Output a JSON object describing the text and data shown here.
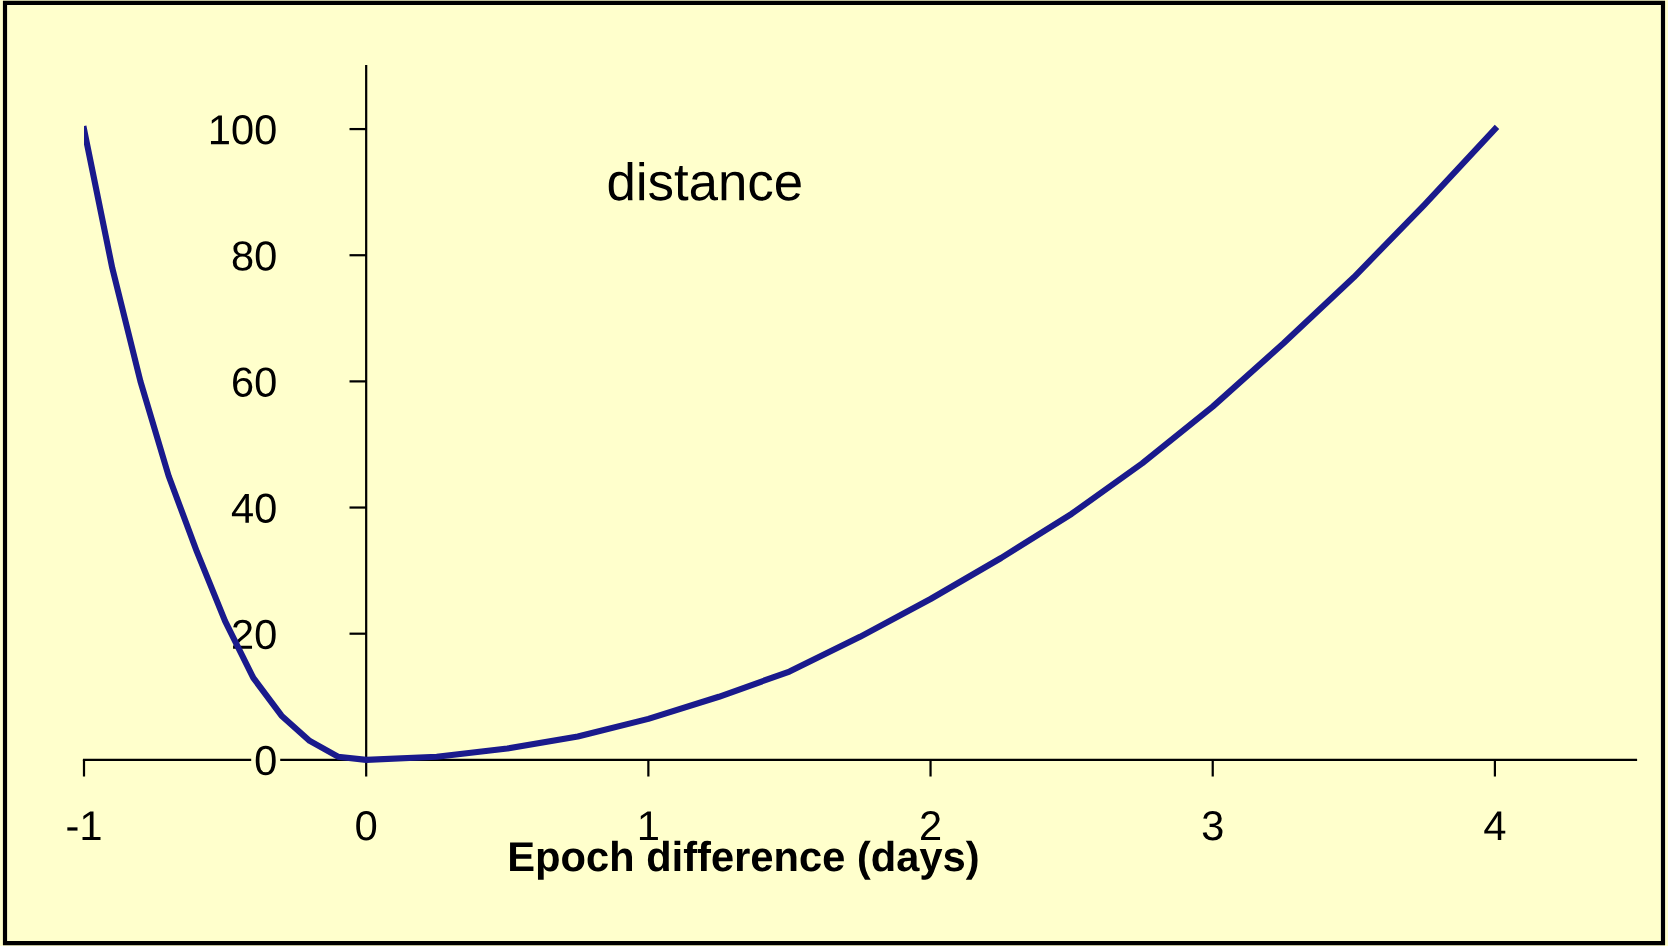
{
  "chart_data": {
    "type": "line",
    "xlabel": "Epoch difference (days)",
    "annotations": [
      "distance"
    ],
    "x": [
      -1,
      -0.9,
      -0.8,
      -0.7,
      -0.6,
      -0.5,
      -0.4,
      -0.3,
      -0.2,
      -0.1,
      0,
      0.25,
      0.5,
      0.75,
      1,
      1.25,
      1.5,
      1.75,
      2,
      2.25,
      2.5,
      2.75,
      3,
      3.25,
      3.5,
      3.75,
      4
    ],
    "series": [
      {
        "color": "#1a1a8c",
        "values": [
          100,
          78,
          60,
          45,
          33,
          22,
          13,
          7,
          3,
          0.5,
          0,
          0.5,
          1.8,
          3.7,
          6.5,
          10,
          14,
          19.5,
          25.5,
          32,
          39,
          47,
          56,
          66,
          76.5,
          88,
          100
        ]
      }
    ],
    "xlim": [
      -1,
      4.5
    ],
    "ylim": [
      0,
      110
    ],
    "xticks": [
      -1,
      0,
      1,
      2,
      3,
      4
    ],
    "yticks": [
      0,
      20,
      40,
      60,
      80,
      100
    ],
    "grid": false,
    "legend": false,
    "marker": "none",
    "line_style": "solid"
  }
}
